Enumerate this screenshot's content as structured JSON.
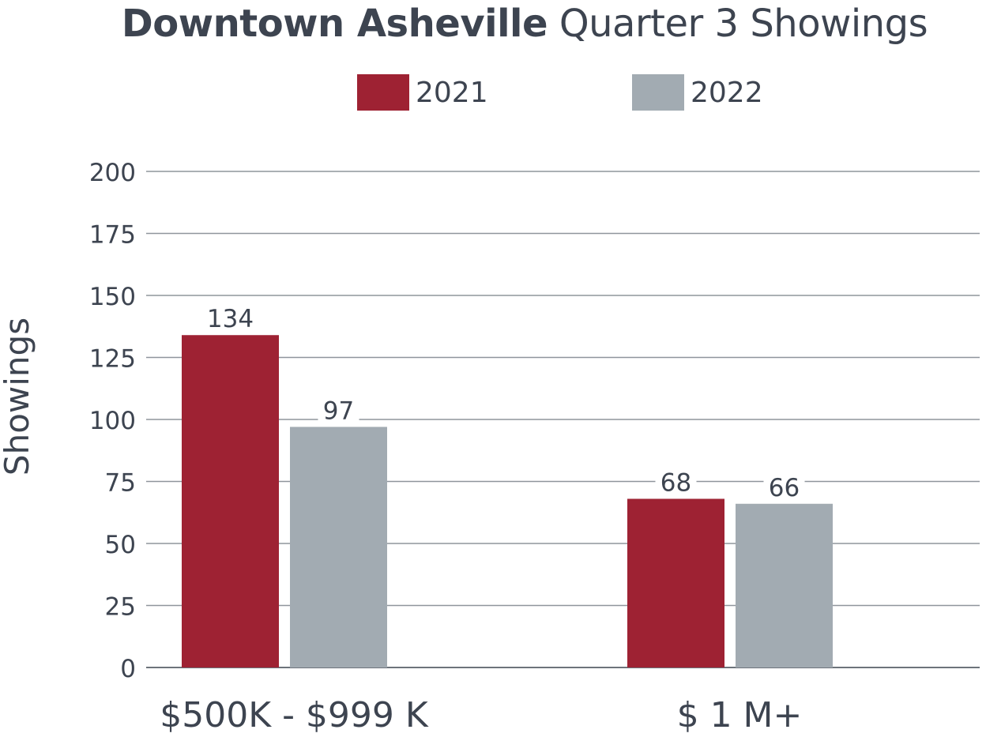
{
  "chart_data": {
    "type": "bar",
    "title_bold": "Downtown Asheville",
    "title_rest": "Quarter 3 Showings",
    "xlabel": "",
    "ylabel": "Showings",
    "ylim": [
      0,
      200
    ],
    "yticks": [
      0,
      25,
      50,
      75,
      100,
      125,
      150,
      175,
      200
    ],
    "grid": true,
    "legend_position": "top-center",
    "categories": [
      "$500K - $999 K",
      "$ 1 M+"
    ],
    "series": [
      {
        "name": "2021",
        "color": "#9e2233",
        "values": [
          134,
          68
        ]
      },
      {
        "name": "2022",
        "color": "#a2abb2",
        "values": [
          97,
          66
        ]
      }
    ]
  }
}
